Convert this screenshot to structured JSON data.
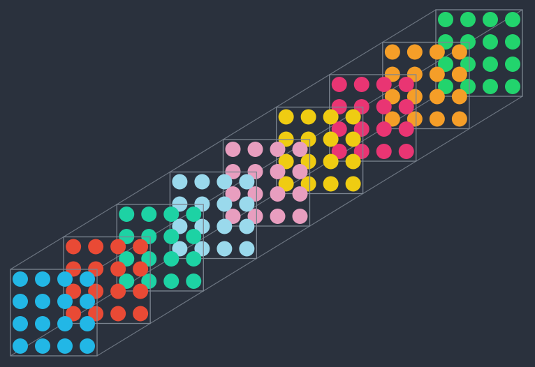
{
  "diagram": {
    "background_color": "#2a313d",
    "frame_color": "#7c8591",
    "grid": {
      "rows": 4,
      "columns": 4
    },
    "layers": [
      {
        "color": "#22b7e6"
      },
      {
        "color": "#e94a35"
      },
      {
        "color": "#1dd2a4"
      },
      {
        "color": "#9ad9ec"
      },
      {
        "color": "#e89ebf"
      },
      {
        "color": "#efcc12"
      },
      {
        "color": "#e93573"
      },
      {
        "color": "#f59e28"
      },
      {
        "color": "#22d46d"
      }
    ]
  }
}
